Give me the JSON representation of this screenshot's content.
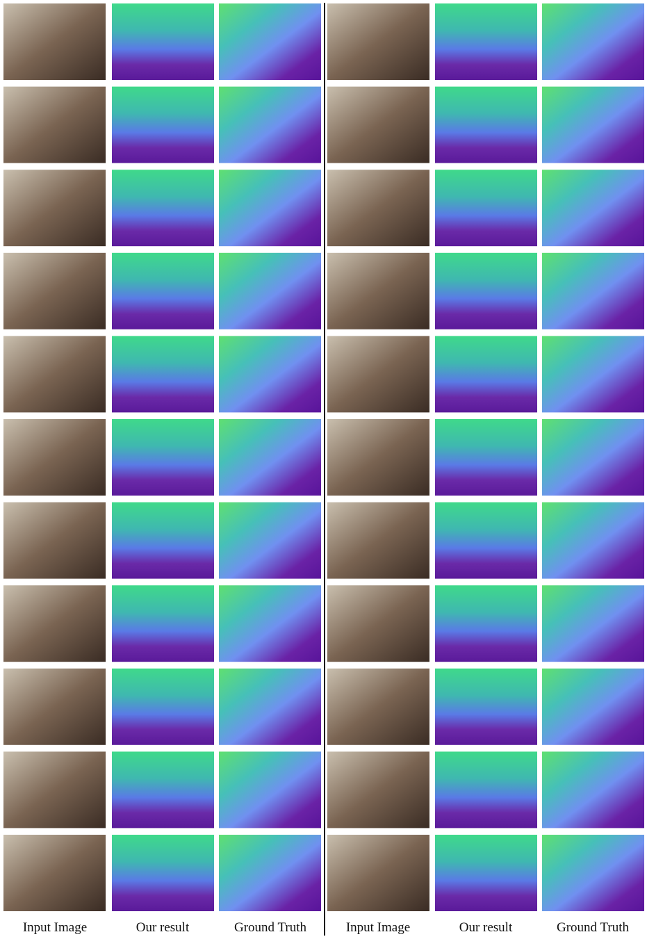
{
  "columns": {
    "left": [
      "Input Image",
      "Our result",
      "Ground Truth"
    ],
    "right": [
      "Input Image",
      "Our result",
      "Ground Truth"
    ]
  }
}
